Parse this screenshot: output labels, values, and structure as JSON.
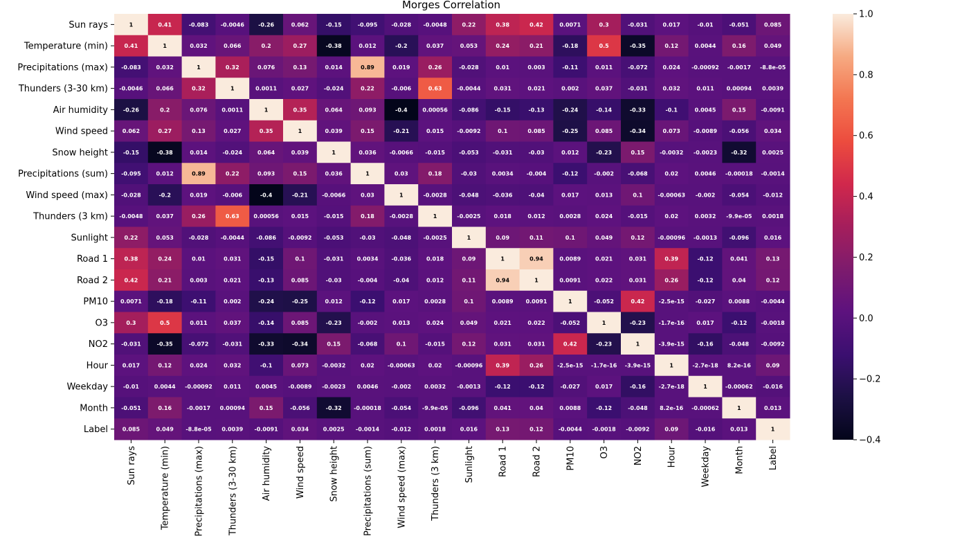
{
  "chart_data": {
    "type": "heatmap",
    "title": "Morges Correlation",
    "labels": [
      "Sun rays",
      "Temperature (min)",
      "Precipitations (max)",
      "Thunders (3-30 km)",
      "Air humidity",
      "Wind speed",
      "Snow height",
      "Precipitations (sum)",
      "Wind speed (max)",
      "Thunders (3 km)",
      "Sunlight",
      "Road 1",
      "Road 2",
      "PM10",
      "O3",
      "NO2",
      "Hour",
      "Weekday",
      "Month",
      "Label"
    ],
    "annotations": [
      [
        "1",
        "0.41",
        "-0.083",
        "-0.0046",
        "-0.26",
        "0.062",
        "-0.15",
        "-0.095",
        "-0.028",
        "-0.0048",
        "0.22",
        "0.38",
        "0.42",
        "0.0071",
        "0.3",
        "-0.031",
        "0.017",
        "-0.01",
        "-0.051",
        "0.085"
      ],
      [
        "0.41",
        "1",
        "0.032",
        "0.066",
        "0.2",
        "0.27",
        "-0.38",
        "0.012",
        "-0.2",
        "0.037",
        "0.053",
        "0.24",
        "0.21",
        "-0.18",
        "0.5",
        "-0.35",
        "0.12",
        "0.0044",
        "0.16",
        "0.049"
      ],
      [
        "-0.083",
        "0.032",
        "1",
        "0.32",
        "0.076",
        "0.13",
        "0.014",
        "0.89",
        "0.019",
        "0.26",
        "-0.028",
        "0.01",
        "0.003",
        "-0.11",
        "0.011",
        "-0.072",
        "0.024",
        "-0.00092",
        "-0.0017",
        "-8.8e-05"
      ],
      [
        "-0.0046",
        "0.066",
        "0.32",
        "1",
        "0.0011",
        "0.027",
        "-0.024",
        "0.22",
        "-0.006",
        "0.63",
        "-0.0044",
        "0.031",
        "0.021",
        "0.002",
        "0.037",
        "-0.031",
        "0.032",
        "0.011",
        "0.00094",
        "0.0039"
      ],
      [
        "-0.26",
        "0.2",
        "0.076",
        "0.0011",
        "1",
        "0.35",
        "0.064",
        "0.093",
        "-0.4",
        "0.00056",
        "-0.086",
        "-0.15",
        "-0.13",
        "-0.24",
        "-0.14",
        "-0.33",
        "-0.1",
        "0.0045",
        "0.15",
        "-0.0091"
      ],
      [
        "0.062",
        "0.27",
        "0.13",
        "0.027",
        "0.35",
        "1",
        "0.039",
        "0.15",
        "-0.21",
        "0.015",
        "-0.0092",
        "0.1",
        "0.085",
        "-0.25",
        "0.085",
        "-0.34",
        "0.073",
        "-0.0089",
        "-0.056",
        "0.034"
      ],
      [
        "-0.15",
        "-0.38",
        "0.014",
        "-0.024",
        "0.064",
        "0.039",
        "1",
        "0.036",
        "-0.0066",
        "-0.015",
        "-0.053",
        "-0.031",
        "-0.03",
        "0.012",
        "-0.23",
        "0.15",
        "-0.0032",
        "-0.0023",
        "-0.32",
        "0.0025"
      ],
      [
        "-0.095",
        "0.012",
        "0.89",
        "0.22",
        "0.093",
        "0.15",
        "0.036",
        "1",
        "0.03",
        "0.18",
        "-0.03",
        "0.0034",
        "-0.004",
        "-0.12",
        "-0.002",
        "-0.068",
        "0.02",
        "0.0046",
        "-0.00018",
        "-0.0014"
      ],
      [
        "-0.028",
        "-0.2",
        "0.019",
        "-0.006",
        "-0.4",
        "-0.21",
        "-0.0066",
        "0.03",
        "1",
        "-0.0028",
        "-0.048",
        "-0.036",
        "-0.04",
        "0.017",
        "0.013",
        "0.1",
        "-0.00063",
        "-0.002",
        "-0.054",
        "-0.012"
      ],
      [
        "-0.0048",
        "0.037",
        "0.26",
        "0.63",
        "0.00056",
        "0.015",
        "-0.015",
        "0.18",
        "-0.0028",
        "1",
        "-0.0025",
        "0.018",
        "0.012",
        "0.0028",
        "0.024",
        "-0.015",
        "0.02",
        "0.0032",
        "-9.9e-05",
        "0.0018"
      ],
      [
        "0.22",
        "0.053",
        "-0.028",
        "-0.0044",
        "-0.086",
        "-0.0092",
        "-0.053",
        "-0.03",
        "-0.048",
        "-0.0025",
        "1",
        "0.09",
        "0.11",
        "0.1",
        "0.049",
        "0.12",
        "-0.00096",
        "-0.0013",
        "-0.096",
        "0.016"
      ],
      [
        "0.38",
        "0.24",
        "0.01",
        "0.031",
        "-0.15",
        "0.1",
        "-0.031",
        "0.0034",
        "-0.036",
        "0.018",
        "0.09",
        "1",
        "0.94",
        "0.0089",
        "0.021",
        "0.031",
        "0.39",
        "-0.12",
        "0.041",
        "0.13"
      ],
      [
        "0.42",
        "0.21",
        "0.003",
        "0.021",
        "-0.13",
        "0.085",
        "-0.03",
        "-0.004",
        "-0.04",
        "0.012",
        "0.11",
        "0.94",
        "1",
        "0.0091",
        "0.022",
        "0.031",
        "0.26",
        "-0.12",
        "0.04",
        "0.12"
      ],
      [
        "0.0071",
        "-0.18",
        "-0.11",
        "0.002",
        "-0.24",
        "-0.25",
        "0.012",
        "-0.12",
        "0.017",
        "0.0028",
        "0.1",
        "0.0089",
        "0.0091",
        "1",
        "-0.052",
        "0.42",
        "-2.5e-15",
        "-0.027",
        "0.0088",
        "-0.0044"
      ],
      [
        "0.3",
        "0.5",
        "0.011",
        "0.037",
        "-0.14",
        "0.085",
        "-0.23",
        "-0.002",
        "0.013",
        "0.024",
        "0.049",
        "0.021",
        "0.022",
        "-0.052",
        "1",
        "-0.23",
        "-1.7e-16",
        "0.017",
        "-0.12",
        "-0.0018"
      ],
      [
        "-0.031",
        "-0.35",
        "-0.072",
        "-0.031",
        "-0.33",
        "-0.34",
        "0.15",
        "-0.068",
        "0.1",
        "-0.015",
        "0.12",
        "0.031",
        "0.031",
        "0.42",
        "-0.23",
        "1",
        "-3.9e-15",
        "-0.16",
        "-0.048",
        "-0.0092"
      ],
      [
        "0.017",
        "0.12",
        "0.024",
        "0.032",
        "-0.1",
        "0.073",
        "-0.0032",
        "0.02",
        "-0.00063",
        "0.02",
        "-0.00096",
        "0.39",
        "0.26",
        "-2.5e-15",
        "-1.7e-16",
        "-3.9e-15",
        "1",
        "-2.7e-18",
        "8.2e-16",
        "0.09"
      ],
      [
        "-0.01",
        "0.0044",
        "-0.00092",
        "0.011",
        "0.0045",
        "-0.0089",
        "-0.0023",
        "0.0046",
        "-0.002",
        "0.0032",
        "-0.0013",
        "-0.12",
        "-0.12",
        "-0.027",
        "0.017",
        "-0.16",
        "-2.7e-18",
        "1",
        "-0.00062",
        "-0.016"
      ],
      [
        "-0.051",
        "0.16",
        "-0.0017",
        "0.00094",
        "0.15",
        "-0.056",
        "-0.32",
        "-0.00018",
        "-0.054",
        "-9.9e-05",
        "-0.096",
        "0.041",
        "0.04",
        "0.0088",
        "-0.12",
        "-0.048",
        "8.2e-16",
        "-0.00062",
        "1",
        "0.013"
      ],
      [
        "0.085",
        "0.049",
        "-8.8e-05",
        "0.0039",
        "-0.0091",
        "0.034",
        "0.0025",
        "-0.0014",
        "-0.012",
        "0.0018",
        "0.016",
        "0.13",
        "0.12",
        "-0.0044",
        "-0.0018",
        "-0.0092",
        "0.09",
        "-0.016",
        "0.013",
        "1"
      ]
    ],
    "colorbar": {
      "vmin": -0.4,
      "vmax": 1.0,
      "ticks": [
        -0.4,
        -0.2,
        0.0,
        0.2,
        0.4,
        0.6,
        0.8,
        1.0
      ],
      "tick_labels": [
        "−0.4",
        "−0.2",
        "0.0",
        "0.2",
        "0.4",
        "0.6",
        "0.8",
        "1.0"
      ],
      "colormap": "rocket"
    }
  }
}
